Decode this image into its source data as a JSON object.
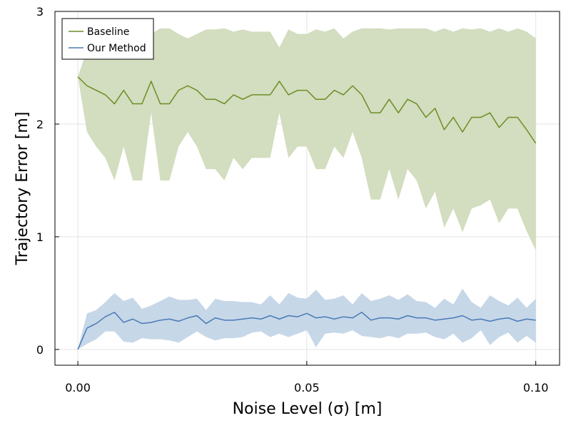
{
  "chart_data": {
    "type": "line",
    "xlabel": "Noise Level (σ) [m]",
    "ylabel": "Trajectory Error [m]",
    "xlim": [
      -0.005,
      0.1052
    ],
    "ylim": [
      -0.14,
      3.0
    ],
    "x_ticks": [
      0.0,
      0.05,
      0.1
    ],
    "x_tick_labels": [
      "0.00",
      "0.05",
      "0.10"
    ],
    "y_ticks": [
      0,
      1,
      2,
      3
    ],
    "y_tick_labels": [
      "0",
      "1",
      "2",
      "3"
    ],
    "grid": true,
    "legend_position": "top-left",
    "x": [
      0.0,
      0.002,
      0.004,
      0.006,
      0.008,
      0.01,
      0.012,
      0.014,
      0.016,
      0.018,
      0.02,
      0.022,
      0.024,
      0.026,
      0.028,
      0.03,
      0.032,
      0.034,
      0.036,
      0.038,
      0.04,
      0.042,
      0.044,
      0.046,
      0.048,
      0.05,
      0.052,
      0.054,
      0.056,
      0.058,
      0.06,
      0.062,
      0.064,
      0.066,
      0.068,
      0.07,
      0.072,
      0.074,
      0.076,
      0.078,
      0.08,
      0.082,
      0.084,
      0.086,
      0.088,
      0.09,
      0.092,
      0.094,
      0.096,
      0.098,
      0.1
    ],
    "series": [
      {
        "name": "Baseline",
        "color": "#6b8e23",
        "band_color": "#d3ddbf",
        "values": [
          2.42,
          2.34,
          2.3,
          2.26,
          2.18,
          2.3,
          2.18,
          2.18,
          2.38,
          2.18,
          2.18,
          2.3,
          2.34,
          2.3,
          2.22,
          2.22,
          2.18,
          2.26,
          2.22,
          2.26,
          2.26,
          2.26,
          2.38,
          2.26,
          2.3,
          2.3,
          2.22,
          2.22,
          2.3,
          2.26,
          2.34,
          2.26,
          2.1,
          2.1,
          2.22,
          2.1,
          2.22,
          2.18,
          2.06,
          2.14,
          1.95,
          2.06,
          1.93,
          2.06,
          2.06,
          2.1,
          1.97,
          2.06,
          2.06,
          1.95,
          1.83
        ],
        "upper": [
          2.42,
          2.66,
          2.82,
          2.85,
          2.82,
          2.8,
          2.84,
          2.82,
          2.8,
          2.85,
          2.85,
          2.8,
          2.76,
          2.8,
          2.84,
          2.84,
          2.85,
          2.82,
          2.84,
          2.82,
          2.82,
          2.82,
          2.68,
          2.84,
          2.8,
          2.8,
          2.84,
          2.82,
          2.85,
          2.76,
          2.82,
          2.85,
          2.85,
          2.85,
          2.84,
          2.85,
          2.85,
          2.85,
          2.85,
          2.82,
          2.85,
          2.82,
          2.85,
          2.84,
          2.85,
          2.82,
          2.85,
          2.82,
          2.85,
          2.82,
          2.76
        ],
        "lower": [
          2.42,
          1.93,
          1.8,
          1.7,
          1.5,
          1.8,
          1.5,
          1.5,
          2.1,
          1.5,
          1.5,
          1.8,
          1.93,
          1.8,
          1.6,
          1.6,
          1.5,
          1.7,
          1.6,
          1.7,
          1.7,
          1.7,
          2.1,
          1.7,
          1.8,
          1.8,
          1.6,
          1.6,
          1.8,
          1.7,
          1.93,
          1.7,
          1.33,
          1.33,
          1.6,
          1.33,
          1.6,
          1.5,
          1.25,
          1.4,
          1.08,
          1.25,
          1.04,
          1.25,
          1.28,
          1.33,
          1.12,
          1.25,
          1.25,
          1.05,
          0.88
        ]
      },
      {
        "name": "Our Method",
        "color": "#4a7ab5",
        "band_color": "#c6d7e8",
        "values": [
          0.0,
          0.19,
          0.23,
          0.29,
          0.33,
          0.24,
          0.27,
          0.23,
          0.24,
          0.26,
          0.27,
          0.25,
          0.28,
          0.3,
          0.23,
          0.28,
          0.26,
          0.26,
          0.27,
          0.28,
          0.27,
          0.3,
          0.27,
          0.3,
          0.29,
          0.32,
          0.28,
          0.29,
          0.27,
          0.29,
          0.28,
          0.33,
          0.26,
          0.28,
          0.28,
          0.27,
          0.3,
          0.28,
          0.28,
          0.26,
          0.27,
          0.28,
          0.3,
          0.26,
          0.27,
          0.25,
          0.27,
          0.28,
          0.25,
          0.27,
          0.26
        ],
        "upper": [
          0.0,
          0.32,
          0.35,
          0.42,
          0.5,
          0.43,
          0.46,
          0.36,
          0.39,
          0.43,
          0.47,
          0.44,
          0.44,
          0.45,
          0.35,
          0.45,
          0.43,
          0.43,
          0.42,
          0.42,
          0.4,
          0.48,
          0.4,
          0.5,
          0.46,
          0.45,
          0.53,
          0.44,
          0.45,
          0.48,
          0.4,
          0.5,
          0.43,
          0.45,
          0.48,
          0.44,
          0.49,
          0.43,
          0.42,
          0.37,
          0.45,
          0.4,
          0.54,
          0.42,
          0.37,
          0.48,
          0.43,
          0.39,
          0.46,
          0.37,
          0.45
        ],
        "lower": [
          0.0,
          0.05,
          0.09,
          0.16,
          0.16,
          0.07,
          0.06,
          0.1,
          0.09,
          0.09,
          0.08,
          0.06,
          0.11,
          0.16,
          0.11,
          0.08,
          0.1,
          0.1,
          0.11,
          0.15,
          0.16,
          0.11,
          0.14,
          0.11,
          0.14,
          0.17,
          0.02,
          0.14,
          0.15,
          0.14,
          0.17,
          0.12,
          0.11,
          0.1,
          0.12,
          0.1,
          0.14,
          0.14,
          0.15,
          0.11,
          0.09,
          0.14,
          0.06,
          0.1,
          0.17,
          0.04,
          0.11,
          0.15,
          0.06,
          0.12,
          0.06
        ]
      }
    ]
  }
}
